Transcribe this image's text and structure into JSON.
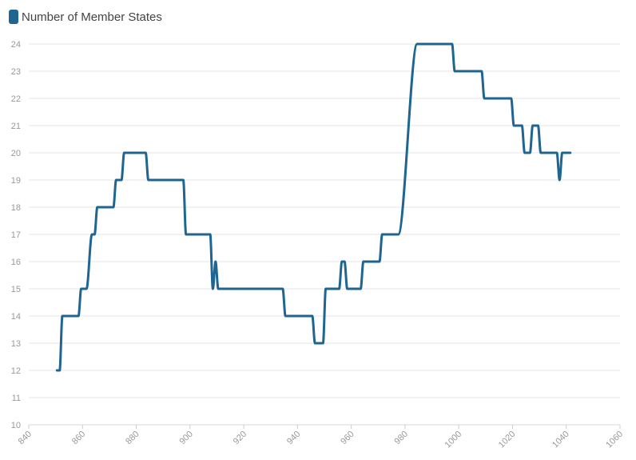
{
  "chart_data": {
    "type": "line",
    "legend": {
      "position": "top-left"
    },
    "colors": {
      "series": "#1f6591",
      "grid": "#e6e6e6",
      "tick": "#999999"
    },
    "grid": true,
    "xlim": [
      840,
      1060
    ],
    "ylim": [
      10,
      24
    ],
    "x_ticks": [
      "840",
      "860",
      "880",
      "900",
      "920",
      "940",
      "960",
      "980",
      "1000",
      "1020",
      "1040",
      "1060"
    ],
    "y_ticks": [
      "10",
      "11",
      "12",
      "13",
      "14",
      "15",
      "16",
      "17",
      "18",
      "19",
      "20",
      "21",
      "22",
      "23",
      "24"
    ],
    "series": [
      {
        "name": "Number of Member States",
        "x": [
          850.5,
          851.5,
          852.5,
          858.5,
          859.5,
          861.5,
          863.5,
          864.5,
          865.5,
          871.5,
          872.5,
          874.5,
          875.5,
          883.5,
          884.5,
          897.5,
          898.5,
          907.5,
          908.5,
          909.5,
          910.5,
          934.5,
          935.5,
          945.5,
          946.5,
          949.5,
          950.5,
          955.5,
          956.5,
          957.5,
          958.5,
          963.5,
          964.5,
          970.5,
          971.5,
          977.5,
          984.5,
          997.5,
          998.5,
          1008.5,
          1009.5,
          1019.5,
          1020.5,
          1023.5,
          1024.5,
          1026.5,
          1027.5,
          1029.5,
          1030.5,
          1036.5,
          1037.5,
          1038.5,
          1041.5
        ],
        "values": [
          12,
          12,
          14,
          14,
          15,
          15,
          17,
          17,
          18,
          18,
          19,
          19,
          20,
          20,
          19,
          19,
          17,
          17,
          15,
          16,
          15,
          15,
          14,
          14,
          13,
          13,
          15,
          15,
          16,
          16,
          15,
          15,
          16,
          16,
          17,
          17,
          24,
          24,
          23,
          23,
          22,
          22,
          21,
          21,
          20,
          20,
          21,
          21,
          20,
          20,
          19,
          20,
          20
        ]
      }
    ]
  }
}
